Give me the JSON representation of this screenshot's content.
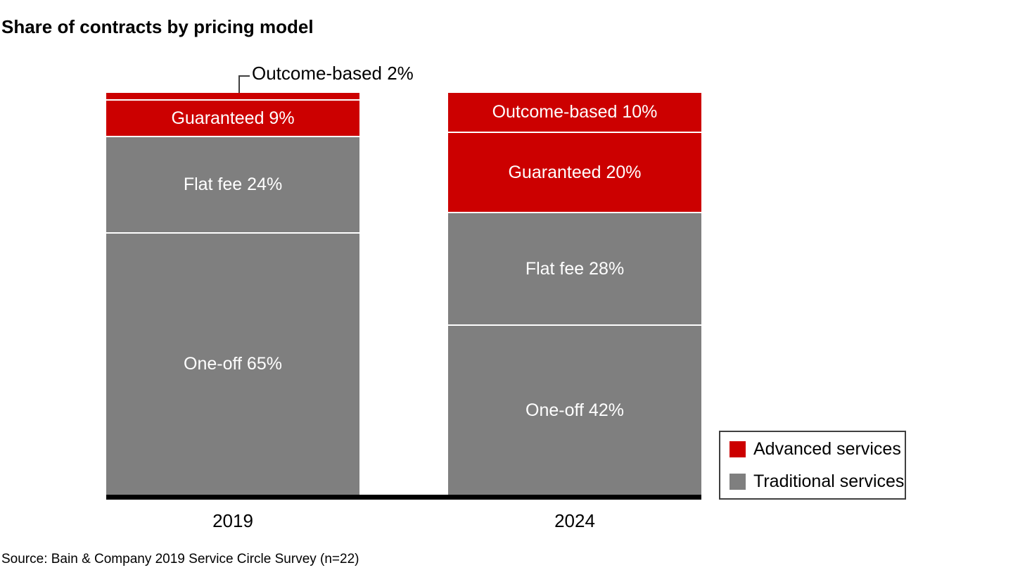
{
  "page": {
    "title": "Share of contracts by pricing model",
    "source_note": "Source: Bain & Company 2019 Service Circle Survey (n=22)"
  },
  "colors": {
    "advanced": "#CC0000",
    "traditional": "#7F7F7F",
    "segment_label_text": "#FFFFFF",
    "baseline": "#000000",
    "annotation_line": "#3F3F3F",
    "legend_border": "#3F3F3F"
  },
  "annotation": {
    "label": "Outcome-based 2%"
  },
  "legend": {
    "items": [
      {
        "label": "Advanced services",
        "color_key": "advanced"
      },
      {
        "label": "Traditional services",
        "color_key": "traditional"
      }
    ]
  },
  "chart_data": {
    "type": "bar",
    "variant": "stacked-100-percent",
    "title": "Share of contracts by pricing model",
    "unit": "%",
    "categories": [
      "2019",
      "2024"
    ],
    "series": [
      {
        "name": "Outcome-based",
        "group": "advanced",
        "values": [
          2,
          10
        ]
      },
      {
        "name": "Guaranteed",
        "group": "advanced",
        "values": [
          9,
          20
        ]
      },
      {
        "name": "Flat fee",
        "group": "traditional",
        "values": [
          24,
          28
        ]
      },
      {
        "name": "One-off",
        "group": "traditional",
        "values": [
          65,
          42
        ]
      }
    ],
    "segment_labels": [
      [
        "Outcome-based 2%",
        "Guaranteed 9%",
        "Flat fee 24%",
        "One-off 65%"
      ],
      [
        "Outcome-based 10%",
        "Guaranteed 20%",
        "Flat fee 28%",
        "One-off 42%"
      ]
    ],
    "external_labels": [
      {
        "category": "2019",
        "series": "Outcome-based",
        "label": "Outcome-based 2%"
      }
    ],
    "legend_entries": [
      "Advanced services",
      "Traditional services"
    ],
    "legend_position": "bottom-right",
    "ylim": [
      0,
      100
    ],
    "grid": false,
    "source": "Source: Bain & Company 2019 Service Circle Survey (n=22)"
  }
}
